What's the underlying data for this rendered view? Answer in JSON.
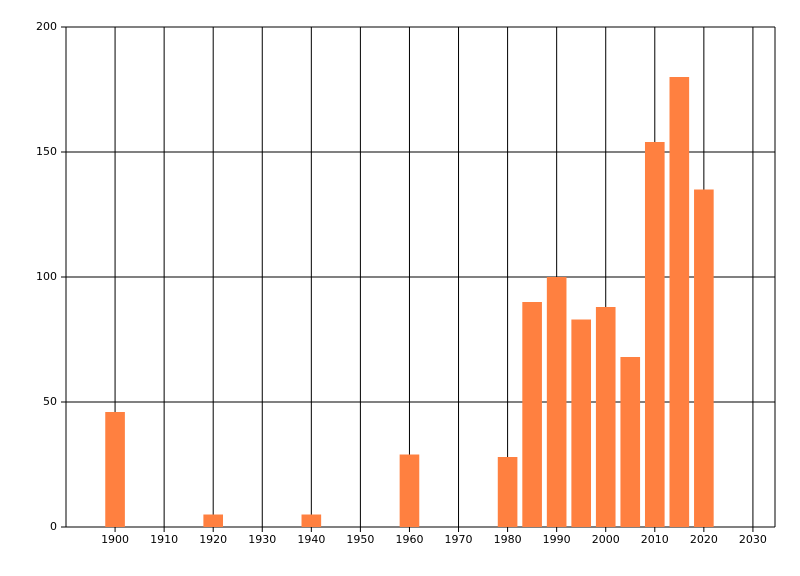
{
  "chart_data": {
    "type": "bar",
    "x": [
      1900,
      1920,
      1940,
      1960,
      1980,
      1985,
      1990,
      1995,
      2000,
      2005,
      2010,
      2015,
      2020
    ],
    "values": [
      46,
      5,
      5,
      29,
      28,
      90,
      100,
      83,
      88,
      68,
      154,
      180,
      135
    ],
    "color": "#ff8040",
    "xlim": [
      1890,
      2034.5
    ],
    "xticks": [
      1900,
      1910,
      1920,
      1930,
      1940,
      1950,
      1960,
      1970,
      1980,
      1990,
      2000,
      2010,
      2020,
      2030
    ],
    "ylim": [
      0,
      200
    ],
    "yticks": [
      0,
      50,
      100,
      150,
      200
    ],
    "grid": true
  }
}
